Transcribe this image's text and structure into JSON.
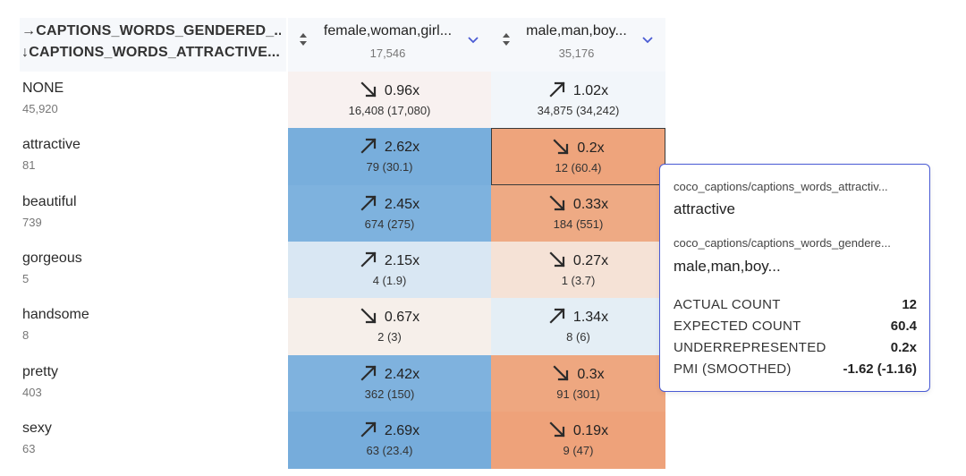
{
  "corner": {
    "row1": "→CAPTIONS_WORDS_GENDERED_...",
    "row2": "↓CAPTIONS_WORDS_ATTRACTIVE..."
  },
  "columns": [
    {
      "label": "female,woman,girl...",
      "count": "17,546"
    },
    {
      "label": "male,man,boy...",
      "count": "35,176"
    }
  ],
  "rows": [
    {
      "label": "NONE",
      "count": "45,920",
      "cells": [
        {
          "dir": "down",
          "ratio": "0.96x",
          "detail": "16,408 (17,080)",
          "color": "#f8f1f0"
        },
        {
          "dir": "up",
          "ratio": "1.02x",
          "detail": "34,875 (34,242)",
          "color": "#f2f6fa"
        }
      ]
    },
    {
      "label": "attractive",
      "count": "81",
      "cells": [
        {
          "dir": "up",
          "ratio": "2.62x",
          "detail": "79 (30.1)",
          "color": "#78aedc"
        },
        {
          "dir": "down",
          "ratio": "0.2x",
          "detail": "12 (60.4)",
          "color": "#eea47c"
        }
      ]
    },
    {
      "label": "beautiful",
      "count": "739",
      "cells": [
        {
          "dir": "up",
          "ratio": "2.45x",
          "detail": "674 (275)",
          "color": "#7eb2de"
        },
        {
          "dir": "down",
          "ratio": "0.33x",
          "detail": "184 (551)",
          "color": "#eeaa84"
        }
      ]
    },
    {
      "label": "gorgeous",
      "count": "5",
      "cells": [
        {
          "dir": "up",
          "ratio": "2.15x",
          "detail": "4 (1.9)",
          "color": "#d9e7f3"
        },
        {
          "dir": "down",
          "ratio": "0.27x",
          "detail": "1 (3.7)",
          "color": "#f5e2d6"
        }
      ]
    },
    {
      "label": "handsome",
      "count": "8",
      "cells": [
        {
          "dir": "down",
          "ratio": "0.67x",
          "detail": "2 (3)",
          "color": "#f6efea"
        },
        {
          "dir": "up",
          "ratio": "1.34x",
          "detail": "8 (6)",
          "color": "#e4eef5"
        }
      ]
    },
    {
      "label": "pretty",
      "count": "403",
      "cells": [
        {
          "dir": "up",
          "ratio": "2.42x",
          "detail": "362 (150)",
          "color": "#7fb2de"
        },
        {
          "dir": "down",
          "ratio": "0.3x",
          "detail": "91 (301)",
          "color": "#eea780"
        }
      ]
    },
    {
      "label": "sexy",
      "count": "63",
      "cells": [
        {
          "dir": "up",
          "ratio": "2.69x",
          "detail": "63 (23.4)",
          "color": "#76acdb"
        },
        {
          "dir": "down",
          "ratio": "0.19x",
          "detail": "9 (47)",
          "color": "#eea27a"
        }
      ]
    }
  ],
  "tooltip": {
    "source1": "coco_captions/captions_words_attractiv...",
    "value1": "attractive",
    "source2": "coco_captions/captions_words_gendere...",
    "value2": "male,man,boy...",
    "stats": [
      {
        "label": "ACTUAL COUNT",
        "value": "12"
      },
      {
        "label": "EXPECTED COUNT",
        "value": "60.4"
      },
      {
        "label": "UNDERREPRESENTED",
        "value": "0.2x"
      },
      {
        "label": "PMI (SMOOTHED)",
        "value": "-1.62 (-1.16)"
      }
    ]
  },
  "colors": {
    "accent": "#4a5bd4",
    "over": "#78aedc",
    "under": "#eea47c"
  }
}
